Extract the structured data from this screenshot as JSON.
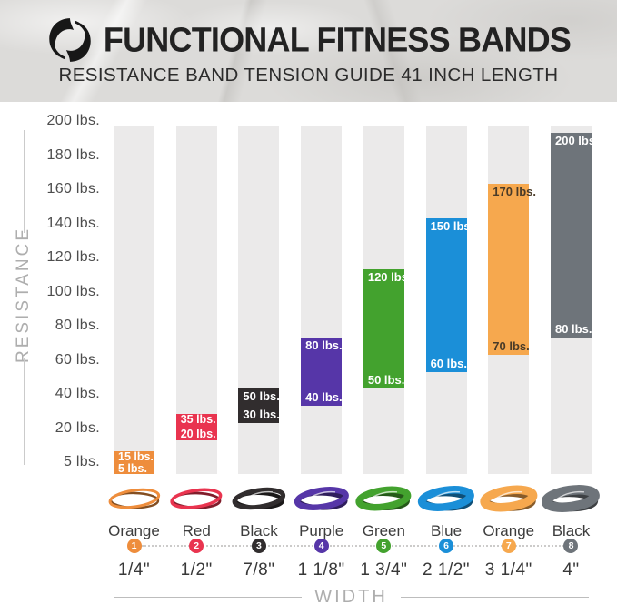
{
  "header": {
    "title": "FUNCTIONAL FITNESS BANDS",
    "subtitle": "RESISTANCE BAND TENSION GUIDE 41 INCH LENGTH",
    "logo_icon": "swirl-brand-logo"
  },
  "chart_data": {
    "type": "bar",
    "title": "Functional Fitness Bands — Resistance Band Tension Guide 41 Inch Length",
    "ylabel": "RESISTANCE",
    "xlabel": "WIDTH",
    "ylim": [
      5,
      200
    ],
    "grid": false,
    "legend": false,
    "column_bg": "#ebeaea",
    "yticks": [
      {
        "value": 200,
        "label": "200 lbs."
      },
      {
        "value": 180,
        "label": "180 lbs."
      },
      {
        "value": 160,
        "label": "160 lbs."
      },
      {
        "value": 140,
        "label": "140 lbs."
      },
      {
        "value": 120,
        "label": "120 lbs."
      },
      {
        "value": 100,
        "label": "100 lbs."
      },
      {
        "value": 80,
        "label": "80 lbs."
      },
      {
        "value": 60,
        "label": "60 lbs."
      },
      {
        "value": 40,
        "label": "40 lbs."
      },
      {
        "value": 20,
        "label": "20 lbs."
      },
      {
        "value": 5,
        "label": "5 lbs."
      }
    ],
    "bands": [
      {
        "number": "1",
        "color_name": "Orange",
        "width_label": "1/4\"",
        "min": 5,
        "max": 15,
        "min_label": "5 lbs.",
        "max_label": "15 lbs.",
        "color": "#ee8d3c",
        "value_text_color": "#ffffff"
      },
      {
        "number": "2",
        "color_name": "Red",
        "width_label": "1/2\"",
        "min": 20,
        "max": 35,
        "min_label": "20 lbs.",
        "max_label": "35 lbs.",
        "color": "#e9344f",
        "value_text_color": "#ffffff"
      },
      {
        "number": "3",
        "color_name": "Black",
        "width_label": "7/8\"",
        "min": 30,
        "max": 50,
        "min_label": "30 lbs.",
        "max_label": "50 lbs.",
        "color": "#312d2e",
        "value_text_color": "#ffffff"
      },
      {
        "number": "4",
        "color_name": "Purple",
        "width_label": "1 1/8\"",
        "min": 40,
        "max": 80,
        "min_label": "40 lbs.",
        "max_label": "80 lbs.",
        "color": "#5636a8",
        "value_text_color": "#ffffff"
      },
      {
        "number": "5",
        "color_name": "Green",
        "width_label": "1 3/4\"",
        "min": 50,
        "max": 120,
        "min_label": "50 lbs.",
        "max_label": "120 lbs.",
        "color": "#43a22e",
        "value_text_color": "#ffffff"
      },
      {
        "number": "6",
        "color_name": "Blue",
        "width_label": "2 1/2\"",
        "min": 60,
        "max": 150,
        "min_label": "60 lbs.",
        "max_label": "150 lbs.",
        "color": "#1b8fd8",
        "value_text_color": "#ffffff"
      },
      {
        "number": "7",
        "color_name": "Orange",
        "width_label": "3 1/4\"",
        "min": 70,
        "max": 170,
        "min_label": "70 lbs.",
        "max_label": "170 lbs.",
        "color": "#f6a84e",
        "value_text_color": "#4a3b28"
      },
      {
        "number": "8",
        "color_name": "Black",
        "width_label": "4\"",
        "min": 80,
        "max": 200,
        "min_label": "80 lbs.",
        "max_label": "200 lbs.",
        "color": "#6e747a",
        "value_text_color": "#ffffff"
      }
    ]
  }
}
